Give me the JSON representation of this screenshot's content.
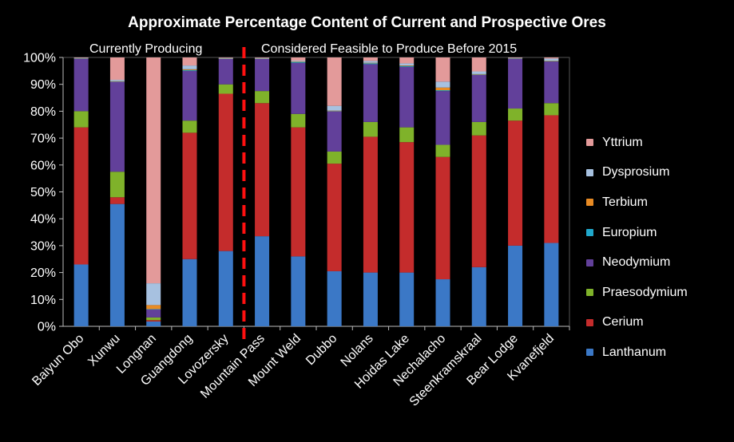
{
  "chart_data": {
    "type": "bar",
    "stacked": true,
    "title": "Approximate Percentage Content of Current and Prospective Ores",
    "group_labels": [
      "Currently Producing",
      "Considered Feasible to Produce Before 2015"
    ],
    "y_ticks": [
      "0%",
      "10%",
      "20%",
      "30%",
      "40%",
      "50%",
      "60%",
      "70%",
      "80%",
      "90%",
      "100%"
    ],
    "ylim": [
      0,
      100
    ],
    "categories": [
      "Baiyun Obo",
      "Xunwu",
      "Longnan",
      "Guangdong",
      "Lovozersky",
      "Mountain Pass",
      "Mount Weld",
      "Dubbo",
      "Nolans",
      "Hoidas Lake",
      "Nechalacho",
      "Steenkramskraal",
      "Bear Lodge",
      "Kvanefjeld"
    ],
    "divider_after_category": "Lovozersky",
    "series": [
      {
        "name": "Lanthanum",
        "color": "#3b78c6",
        "values": [
          23,
          45.5,
          1.8,
          25,
          28,
          33.5,
          26,
          20.5,
          20,
          20,
          17.5,
          22,
          30,
          31
        ]
      },
      {
        "name": "Cerium",
        "color": "#c42c2c",
        "values": [
          51,
          2.5,
          0.5,
          47,
          58.5,
          49.5,
          48,
          40,
          50.5,
          48.5,
          45.5,
          49,
          46.5,
          47.5
        ]
      },
      {
        "name": "Praesodymium",
        "color": "#7fb22a",
        "values": [
          6,
          9.5,
          1,
          4.5,
          3.5,
          4.5,
          5,
          4.5,
          5.5,
          5.5,
          4.5,
          5,
          4.5,
          4.5
        ]
      },
      {
        "name": "Neodymium",
        "color": "#62409a",
        "values": [
          19.5,
          33.5,
          3,
          18.5,
          9.5,
          12,
          19,
          15,
          21.5,
          22.5,
          20,
          17.5,
          18.5,
          15.5
        ]
      },
      {
        "name": "Europium",
        "color": "#20a8cc",
        "values": [
          0.2,
          0.1,
          0.1,
          0.3,
          0.1,
          0.1,
          0.4,
          0.1,
          0.4,
          0.3,
          0.3,
          0.2,
          0.2,
          0.2
        ]
      },
      {
        "name": "Terbium",
        "color": "#e88b24",
        "values": [
          0.1,
          0.1,
          1.5,
          0.3,
          0.1,
          0.1,
          0.1,
          0.1,
          0.1,
          0.2,
          1,
          0.1,
          0.1,
          0.1
        ]
      },
      {
        "name": "Dysprosium",
        "color": "#a7c1e0",
        "values": [
          0.1,
          0.5,
          8.1,
          1.4,
          0.1,
          0.1,
          0.3,
          1.8,
          0.7,
          0.8,
          2.2,
          1,
          0.1,
          0.8
        ]
      },
      {
        "name": "Yttrium",
        "color": "#e39a9a",
        "values": [
          0.1,
          8.3,
          84,
          3,
          0.2,
          0.2,
          1.2,
          18,
          1.3,
          2.2,
          9,
          5.2,
          0.1,
          0.4
        ]
      }
    ],
    "legend_position": "right",
    "grid": false
  }
}
